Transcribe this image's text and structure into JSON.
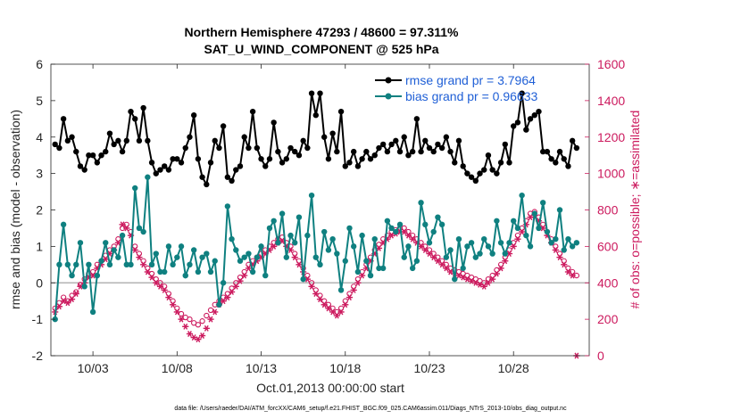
{
  "title_line1": "Northern Hemisphere 47293 / 48600 = 97.311%",
  "title_line2": "SAT_U_WIND_COMPONENT @ 525 hPa",
  "footer": "data file: /Users/raeder/DAI/ATM_forcXX/CAM6_setup/f.e21.FHIST_BGC.f09_025.CAM6assim.011/Diags_NTrS_2013-10/obs_diag_output.nc",
  "colors": {
    "rmse": "#000000",
    "bias": "#0f8080",
    "obs": "#cc1a5e",
    "zero": "#b3b3b3",
    "legend_text": "#1f5fd6"
  },
  "chart_data": {
    "type": "line",
    "title": "Northern Hemisphere 47293 / 48600 = 97.311%",
    "subtitle": "SAT_U_WIND_COMPONENT @ 525 hPa",
    "xlabel": "Oct.01,2013 00:00:00 start",
    "ylabel": "rmse and bias (model - observation)",
    "y2label": "# of obs: o=possible; ∗=assimilated",
    "xlim": [
      0.5,
      32.5
    ],
    "ylim": [
      -2,
      6
    ],
    "y2lim": [
      0,
      1600
    ],
    "x_ticks": [
      3,
      8,
      13,
      18,
      23,
      28
    ],
    "x_tick_labels": [
      "10/03",
      "10/08",
      "10/13",
      "10/18",
      "10/23",
      "10/28"
    ],
    "y_ticks": [
      -2,
      -1,
      0,
      1,
      2,
      3,
      4,
      5,
      6
    ],
    "y2_ticks": [
      0,
      200,
      400,
      600,
      800,
      1000,
      1200,
      1400,
      1600
    ],
    "grid": false,
    "legend_position": "top-right",
    "legend": [
      "rmse grand pr = 3.7964",
      "bias grand pr = 0.96633"
    ],
    "x_start": 0.75,
    "x_step": 0.25,
    "series": [
      {
        "name": "rmse grand pr = 3.7964",
        "axis": "left",
        "marker": "circle",
        "values": [
          3.8,
          3.7,
          4.5,
          3.9,
          4.0,
          3.6,
          3.2,
          3.1,
          3.5,
          3.5,
          3.3,
          3.5,
          3.6,
          4.1,
          3.8,
          3.9,
          3.6,
          3.9,
          4.7,
          4.5,
          3.9,
          4.8,
          3.9,
          3.3,
          3.0,
          3.1,
          3.2,
          3.1,
          3.4,
          3.4,
          3.3,
          3.7,
          4.0,
          4.6,
          3.4,
          2.9,
          2.7,
          3.3,
          3.9,
          3.7,
          4.3,
          2.9,
          2.8,
          3.1,
          3.2,
          4.0,
          3.7,
          4.7,
          3.7,
          3.4,
          3.2,
          3.4,
          4.4,
          3.6,
          3.3,
          3.4,
          3.7,
          3.6,
          3.5,
          3.9,
          3.7,
          5.2,
          4.6,
          5.2,
          4.0,
          3.4,
          4.1,
          3.6,
          4.7,
          3.2,
          3.3,
          3.6,
          3.2,
          3.4,
          3.6,
          3.4,
          3.5,
          3.7,
          3.8,
          3.6,
          3.8,
          3.9,
          3.6,
          4.0,
          3.5,
          3.6,
          4.5,
          3.6,
          3.9,
          3.7,
          3.6,
          3.8,
          3.7,
          4.0,
          3.6,
          3.3,
          3.9,
          3.2,
          3.0,
          2.9,
          2.8,
          3.0,
          3.1,
          3.5,
          3.1,
          3.0,
          3.3,
          3.8,
          3.3,
          4.3,
          4.4,
          5.2,
          4.2,
          4.5,
          4.6,
          4.7,
          3.6,
          3.6,
          3.4,
          3.3,
          3.6,
          3.4,
          3.2,
          3.9,
          3.7
        ]
      },
      {
        "name": "bias grand pr = 0.96633",
        "axis": "left",
        "marker": "circle",
        "values": [
          -1.0,
          0.5,
          1.6,
          0.5,
          0.2,
          0.5,
          1.1,
          -0.1,
          0.5,
          -0.8,
          0.2,
          0.6,
          1.1,
          0.5,
          0.9,
          0.7,
          1.3,
          0.5,
          0.5,
          2.6,
          1.5,
          1.4,
          2.9,
          0.5,
          0.8,
          0.3,
          0.3,
          1.0,
          0.5,
          0.7,
          1.0,
          0.2,
          0.5,
          0.9,
          0.3,
          0.7,
          0.8,
          0.3,
          0.6,
          -0.6,
          0.0,
          2.1,
          1.2,
          0.9,
          0.6,
          0.7,
          0.8,
          0.3,
          0.7,
          1.0,
          0.2,
          1.5,
          1.7,
          1.1,
          1.9,
          0.7,
          1.3,
          1.1,
          1.8,
          0.1,
          1.3,
          2.4,
          0.7,
          0.5,
          1.4,
          0.9,
          1.2,
          0.8,
          -0.2,
          0.6,
          1.5,
          1.0,
          0.3,
          1.3,
          0.6,
          0.2,
          1.2,
          0.4,
          0.4,
          1.7,
          1.5,
          1.4,
          1.6,
          0.7,
          1.0,
          0.4,
          0.6,
          2.2,
          1.6,
          1.1,
          1.4,
          1.8,
          1.6,
          0.7,
          0.9,
          0.1,
          1.2,
          0.4,
          1.0,
          1.1,
          0.7,
          0.8,
          1.2,
          1.0,
          0.8,
          1.7,
          1.1,
          0.8,
          1.1,
          1.7,
          1.5,
          2.4,
          1.3,
          1.0,
          1.9,
          1.5,
          2.2,
          1.4,
          1.1,
          1.2,
          2.0,
          0.9,
          1.2,
          1.0,
          1.1
        ]
      },
      {
        "name": "possible",
        "axis": "right",
        "marker": "o",
        "values": [
          260,
          290,
          320,
          300,
          330,
          350,
          390,
          420,
          450,
          460,
          500,
          520,
          550,
          580,
          600,
          640,
          700,
          720,
          680,
          600,
          560,
          520,
          480,
          450,
          420,
          400,
          380,
          340,
          300,
          260,
          230,
          210,
          200,
          180,
          170,
          190,
          220,
          250,
          280,
          300,
          320,
          340,
          370,
          400,
          430,
          460,
          500,
          520,
          540,
          560,
          580,
          600,
          620,
          640,
          650,
          620,
          600,
          560,
          520,
          480,
          440,
          400,
          360,
          330,
          300,
          280,
          260,
          240,
          260,
          300,
          340,
          380,
          420,
          460,
          500,
          540,
          580,
          610,
          640,
          660,
          680,
          690,
          700,
          700,
          680,
          660,
          640,
          620,
          600,
          580,
          560,
          540,
          520,
          500,
          480,
          470,
          460,
          450,
          440,
          430,
          420,
          410,
          400,
          420,
          440,
          470,
          500,
          540,
          580,
          620,
          660,
          700,
          740,
          780,
          790,
          760,
          720,
          680,
          640,
          600,
          560,
          520,
          480,
          460,
          440
        ]
      },
      {
        "name": "assimilated",
        "axis": "right",
        "marker": "asterisk",
        "values": [
          240,
          270,
          300,
          290,
          310,
          340,
          380,
          400,
          430,
          440,
          480,
          500,
          530,
          560,
          580,
          620,
          720,
          700,
          660,
          580,
          540,
          500,
          460,
          430,
          400,
          380,
          360,
          320,
          280,
          240,
          200,
          160,
          120,
          100,
          90,
          110,
          150,
          200,
          240,
          280,
          300,
          320,
          350,
          380,
          410,
          440,
          480,
          500,
          520,
          540,
          560,
          580,
          600,
          620,
          630,
          600,
          580,
          540,
          500,
          460,
          420,
          380,
          340,
          310,
          280,
          260,
          240,
          220,
          240,
          280,
          320,
          360,
          400,
          440,
          480,
          520,
          560,
          590,
          620,
          640,
          660,
          670,
          680,
          680,
          660,
          640,
          620,
          600,
          580,
          560,
          540,
          520,
          500,
          480,
          460,
          450,
          440,
          430,
          420,
          410,
          400,
          390,
          380,
          400,
          420,
          450,
          480,
          520,
          560,
          600,
          640,
          680,
          720,
          760,
          770,
          740,
          700,
          660,
          620,
          580,
          540,
          500,
          460,
          440,
          0
        ]
      }
    ]
  }
}
